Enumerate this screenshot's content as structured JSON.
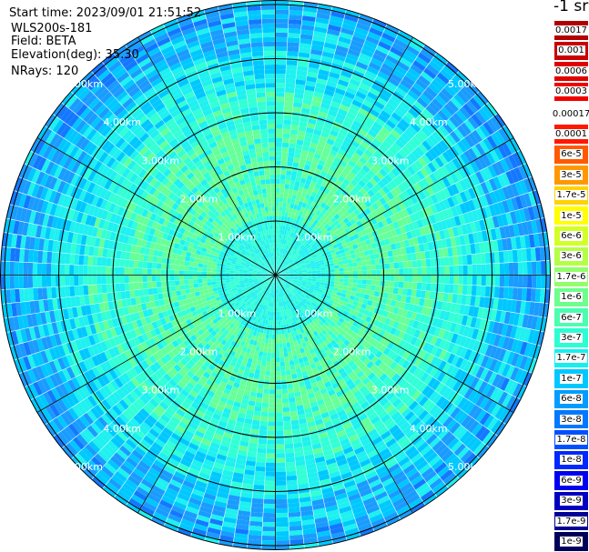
{
  "header": {
    "start_time": "Start time: 2023/09/01 21:51:52",
    "instrument": "WLS200s-181",
    "field": "Field: BETA",
    "elevation": "Elevation(deg): 35.30",
    "nrays": "NRays: 120"
  },
  "range_labels": [
    "1.00km",
    "2.00km",
    "3.00km",
    "4.00km",
    "5.00km"
  ],
  "colorbar": {
    "title": "-1 sr",
    "upper_levels": [
      {
        "label": "0.0017",
        "color": "#b00000"
      },
      {
        "label": "0.001",
        "color": "#c80000"
      },
      {
        "label": "0.0006",
        "color": "#e00000"
      },
      {
        "label": "0.0003",
        "color": "#f20000"
      }
    ],
    "lower_levels": [
      {
        "label": "0.00017",
        "color": "#ffffff"
      },
      {
        "label": "0.0001",
        "color": "#ff1800"
      },
      {
        "label": "6e-5",
        "color": "#ff5a00"
      },
      {
        "label": "3e-5",
        "color": "#ff9800"
      },
      {
        "label": "1.7e-5",
        "color": "#ffd200"
      },
      {
        "label": "1e-5",
        "color": "#ffff00"
      },
      {
        "label": "6e-6",
        "color": "#d2ff28"
      },
      {
        "label": "3e-6",
        "color": "#b4ff46"
      },
      {
        "label": "1.7e-6",
        "color": "#91ff6a"
      },
      {
        "label": "1e-6",
        "color": "#6cff8c"
      },
      {
        "label": "6e-7",
        "color": "#48ffb0"
      },
      {
        "label": "3e-7",
        "color": "#2affd2"
      },
      {
        "label": "1.7e-7",
        "color": "#14f0f0"
      },
      {
        "label": "1e-7",
        "color": "#00c8ff"
      },
      {
        "label": "6e-8",
        "color": "#009cff"
      },
      {
        "label": "3e-8",
        "color": "#0078ff"
      },
      {
        "label": "1.7e-8",
        "color": "#0050ff"
      },
      {
        "label": "1e-8",
        "color": "#0028ff"
      },
      {
        "label": "6e-9",
        "color": "#0000f0"
      },
      {
        "label": "3e-9",
        "color": "#0000c0"
      },
      {
        "label": "1.7e-9",
        "color": "#000096"
      },
      {
        "label": "1e-9",
        "color": "#00005a"
      }
    ]
  },
  "palette": {
    "inner_green": "#66ff99",
    "cyan": "#33ffd6",
    "aqua": "#1ff0f0",
    "sky": "#00c8ff",
    "blue_mid": "#1a9cff",
    "blue_deep": "#1478ff"
  }
}
